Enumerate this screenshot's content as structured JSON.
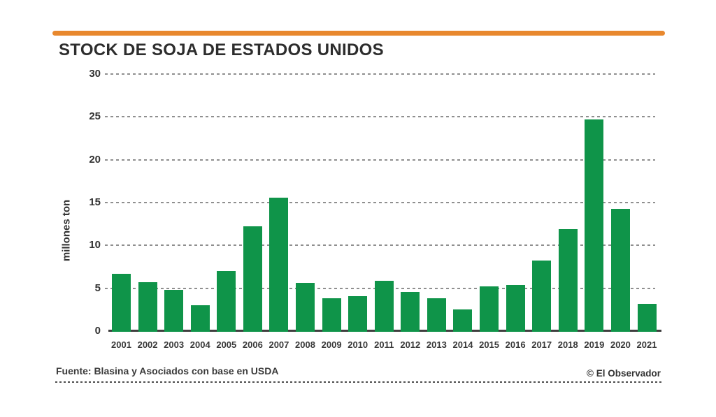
{
  "title": "STOCK DE SOJA DE ESTADOS UNIDOS",
  "colors": {
    "accent_orange": "#E8882E",
    "bar_green": "#0F9449",
    "grid_gray": "#8F8F8F",
    "axis_dark": "#3F3F3F",
    "title_text": "#2D2D2D"
  },
  "footer": {
    "source": "Fuente: Blasina y Asociados con base en USDA",
    "credit": "© El Observador"
  },
  "chart_data": {
    "type": "bar",
    "title": "STOCK DE SOJA DE ESTADOS UNIDOS",
    "ylabel": "millones ton",
    "xlabel": "",
    "ylim": [
      0,
      30
    ],
    "yticks": [
      0,
      5,
      10,
      15,
      20,
      25,
      30
    ],
    "grid": true,
    "grid_style": "dashed",
    "legend": "none",
    "categories": [
      "2001",
      "2002",
      "2003",
      "2004",
      "2005",
      "2006",
      "2007",
      "2008",
      "2009",
      "2010",
      "2011",
      "2012",
      "2013",
      "2014",
      "2015",
      "2016",
      "2017",
      "2018",
      "2019",
      "2020",
      "2021"
    ],
    "values": [
      6.7,
      5.7,
      4.8,
      3.0,
      7.0,
      12.2,
      15.6,
      5.6,
      3.8,
      4.1,
      5.9,
      4.6,
      3.8,
      2.5,
      5.2,
      5.4,
      8.2,
      11.9,
      24.7,
      14.3,
      3.2
    ],
    "bar_color": "#0F9449"
  }
}
